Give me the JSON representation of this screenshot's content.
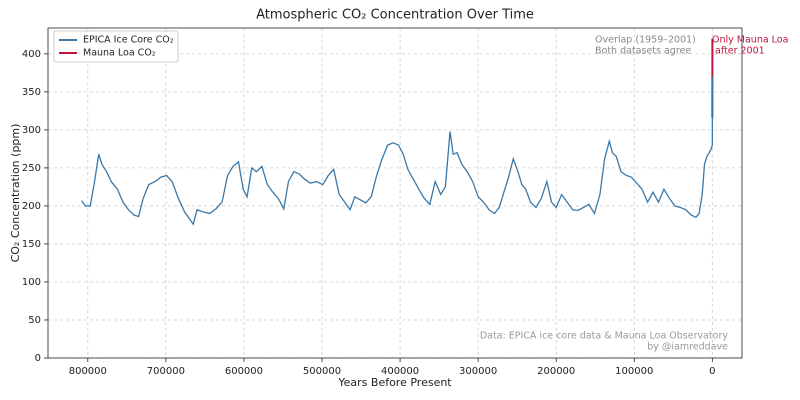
{
  "chart_data": {
    "type": "line",
    "title": "Atmospheric CO₂ Concentration Over Time",
    "xlabel": "Years Before Present",
    "ylabel": "CO₂ Concentration (ppm)",
    "xlim": [
      851000,
      -38000
    ],
    "ylim": [
      0,
      434
    ],
    "xticks": [
      800000,
      700000,
      600000,
      500000,
      400000,
      300000,
      200000,
      100000,
      0
    ],
    "yticks": [
      0,
      50,
      100,
      150,
      200,
      250,
      300,
      350,
      400
    ],
    "grid": true,
    "legend": "upper left",
    "series": [
      {
        "name": "EPICA Ice Core CO₂",
        "color": "#3b78a8",
        "x": [
          808000,
          803000,
          797000,
          792000,
          786000,
          782000,
          776000,
          770000,
          762000,
          755000,
          748000,
          741000,
          735000,
          729000,
          722000,
          714000,
          706000,
          699000,
          692000,
          684000,
          676000,
          669000,
          665000,
          660000,
          652000,
          644000,
          636000,
          628000,
          621000,
          614000,
          607000,
          601000,
          596000,
          590000,
          584000,
          577000,
          570000,
          563000,
          556000,
          549000,
          543000,
          536000,
          529000,
          522000,
          515000,
          507000,
          499000,
          492000,
          485000,
          478000,
          471000,
          464000,
          458000,
          451000,
          444000,
          437000,
          430000,
          423000,
          416000,
          409000,
          402000,
          396000,
          390000,
          383000,
          376000,
          369000,
          362000,
          355000,
          348000,
          342000,
          336000,
          332000,
          327000,
          321000,
          314000,
          307000,
          300000,
          293000,
          286000,
          279000,
          273000,
          267000,
          261000,
          255000,
          249000,
          244000,
          239000,
          233000,
          226000,
          219000,
          212000,
          206000,
          200000,
          193000,
          186000,
          179000,
          172000,
          165000,
          158000,
          151000,
          144000,
          138000,
          132000,
          128000,
          123000,
          117000,
          110000,
          104000,
          97000,
          90000,
          83000,
          76000,
          69000,
          62000,
          55000,
          48000,
          41000,
          34000,
          27000,
          21000,
          17000,
          13000,
          10000,
          7000,
          4000,
          1500,
          0,
          -20,
          -40,
          -51
        ],
        "values": [
          207,
          200,
          200,
          228,
          268,
          255,
          245,
          232,
          222,
          205,
          195,
          188,
          186,
          210,
          228,
          232,
          238,
          240,
          232,
          210,
          192,
          182,
          176,
          195,
          192,
          190,
          196,
          205,
          240,
          252,
          258,
          222,
          212,
          250,
          245,
          252,
          228,
          218,
          210,
          196,
          232,
          245,
          242,
          235,
          230,
          232,
          228,
          240,
          248,
          215,
          205,
          195,
          212,
          208,
          204,
          212,
          240,
          262,
          280,
          283,
          280,
          268,
          248,
          235,
          222,
          210,
          202,
          232,
          215,
          225,
          298,
          268,
          270,
          255,
          245,
          232,
          212,
          205,
          195,
          190,
          198,
          218,
          238,
          262,
          245,
          228,
          222,
          205,
          198,
          210,
          232,
          205,
          198,
          215,
          205,
          195,
          194,
          198,
          202,
          190,
          215,
          262,
          285,
          270,
          265,
          245,
          240,
          238,
          230,
          222,
          205,
          218,
          205,
          222,
          210,
          200,
          198,
          195,
          188,
          185,
          190,
          215,
          255,
          265,
          270,
          275,
          280,
          300,
          330,
          370
        ]
      },
      {
        "name": "Mauna Loa CO₂",
        "color": "#c0143c",
        "x": [
          -9,
          -20,
          -30,
          -40,
          -51,
          -60,
          -70,
          -73
        ],
        "values": [
          316,
          326,
          339,
          354,
          371,
          389,
          411,
          420
        ]
      }
    ],
    "annotations": [
      {
        "lines": [
          "Overlap (1959–2001)",
          "Both datasets agree"
        ],
        "color": "#888888"
      },
      {
        "lines": [
          "Only Mauna Loa",
          " after 2001"
        ],
        "color": "#c0143c"
      },
      {
        "lines": [
          "Data: EPICA ice core data & Mauna Loa Observatory",
          "by @iamreddave"
        ],
        "color": "#999999"
      }
    ]
  }
}
